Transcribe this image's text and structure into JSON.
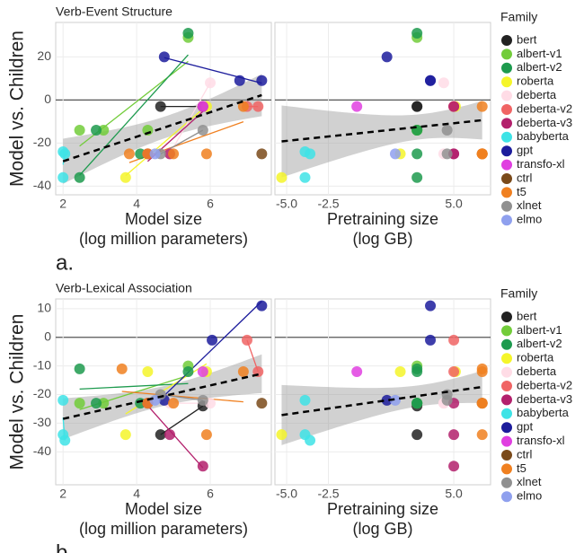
{
  "chart_data": [
    {
      "type": "scatter",
      "title": "Verb-Event Structure",
      "panel_label": "a.",
      "ylabel": "Model vs. Children",
      "legend_title": "Family",
      "ylim": [
        -44,
        36
      ],
      "yticks": [
        -40,
        -20,
        0,
        20
      ],
      "xlabel": [
        "Model size",
        "(log million parameters)"
      ],
      "xlim": [
        1.8,
        7.66
      ],
      "xticks": [
        2,
        4,
        6
      ],
      "x2label": [
        "Pretraining size",
        "(log GB)"
      ],
      "x2lim": [
        -5.7,
        7.2
      ],
      "x2ticks": [
        {
          "value": -5,
          "label": "-5.0"
        },
        {
          "value": -2.5,
          "label": "-2.5"
        },
        {
          "value": 5,
          "label": "5.0"
        }
      ],
      "series": [
        {
          "name": "bert",
          "color": "#222222",
          "x": [
            4.65,
            5.8
          ],
          "x2": [
            2.8,
            2.8
          ],
          "values": [
            -3,
            -3
          ]
        },
        {
          "name": "albert-v1",
          "color": "#72cc3a",
          "x": [
            2.45,
            3.1,
            4.3,
            5.4
          ],
          "x2": [
            2.8,
            2.8,
            2.8,
            2.8
          ],
          "values": [
            -14,
            -14,
            -14,
            29
          ]
        },
        {
          "name": "albert-v2",
          "color": "#1d9a4e",
          "x": [
            2.45,
            2.9,
            4.1,
            5.4
          ],
          "x2": [
            2.8,
            2.8,
            2.8,
            2.8
          ],
          "values": [
            -36,
            -14,
            -25,
            31
          ]
        },
        {
          "name": "roberta",
          "color": "#f5f52a",
          "x": [
            3.7,
            4.3,
            5.9
          ],
          "x2": [
            -5.3,
            1.8,
            5.1
          ],
          "values": [
            -36,
            -25,
            -3
          ]
        },
        {
          "name": "deberta",
          "color": "#ffdce6",
          "x": [
            4.9,
            6.0
          ],
          "x2": [
            4.4,
            4.4
          ],
          "values": [
            -25,
            8
          ]
        },
        {
          "name": "deberta-v2",
          "color": "#f06464",
          "x": [
            7.0,
            7.3
          ],
          "x2": [
            5.0,
            5.0
          ],
          "values": [
            -3,
            -3
          ]
        },
        {
          "name": "deberta-v3",
          "color": "#b3206c",
          "x": [
            4.3,
            4.9,
            5.8
          ],
          "x2": [
            5.0,
            5.0,
            5.0
          ],
          "values": [
            -25,
            -25,
            -3
          ]
        },
        {
          "name": "babyberta",
          "color": "#3ee3e6",
          "x": [
            2.0,
            2.0,
            2.05
          ],
          "x2": [
            -3.9,
            -3.9,
            -3.6
          ],
          "values": [
            -24,
            -36,
            -25
          ]
        },
        {
          "name": "gpt",
          "color": "#1c1c9c",
          "x": [
            4.75,
            6.8,
            7.4
          ],
          "x2": [
            1.0,
            3.6,
            3.6
          ],
          "values": [
            20,
            9,
            9
          ]
        },
        {
          "name": "transfo-xl",
          "color": "#e03fe0",
          "x": [
            5.8
          ],
          "x2": [
            -0.8
          ],
          "values": [
            -3
          ]
        },
        {
          "name": "ctrl",
          "color": "#7a4a1a",
          "x": [
            7.4
          ],
          "x2": [
            6.7
          ],
          "values": [
            -25
          ]
        },
        {
          "name": "t5",
          "color": "#f08020",
          "x": [
            3.8,
            4.3,
            5.0,
            5.9,
            6.9
          ],
          "x2": [
            6.7,
            6.7,
            6.7,
            6.7,
            6.7
          ],
          "values": [
            -25,
            -25,
            -25,
            -25,
            -3
          ]
        },
        {
          "name": "xlnet",
          "color": "#909090",
          "x": [
            4.65,
            5.8
          ],
          "x2": [
            4.6,
            4.6
          ],
          "values": [
            -25,
            -14
          ]
        },
        {
          "name": "elmo",
          "color": "#8fa0ee",
          "x": [
            4.5
          ],
          "x2": [
            1.5
          ],
          "values": [
            -25
          ]
        }
      ]
    },
    {
      "type": "scatter",
      "title": "Verb-Lexical Association",
      "panel_label": "b.",
      "ylabel": "Model vs. Children",
      "legend_title": "Family",
      "ylim": [
        -51.5,
        13.4
      ],
      "yticks": [
        -40,
        -30,
        -20,
        -10,
        0,
        10
      ],
      "xlabel": [
        "Model size",
        "(log million parameters)"
      ],
      "xlim": [
        1.8,
        7.66
      ],
      "xticks": [
        2,
        4,
        6
      ],
      "x2label": [
        "Pretraining size",
        "(log GB)"
      ],
      "x2lim": [
        -5.7,
        7.2
      ],
      "x2ticks": [
        {
          "value": -5,
          "label": "-5.0"
        },
        {
          "value": -2.5,
          "label": "-2.5"
        },
        {
          "value": 5,
          "label": "5.0"
        }
      ],
      "series": [
        {
          "name": "bert",
          "color": "#222222",
          "x": [
            4.65,
            5.8
          ],
          "x2": [
            2.8,
            2.8
          ],
          "values": [
            -34,
            -24
          ]
        },
        {
          "name": "albert-v1",
          "color": "#72cc3a",
          "x": [
            2.45,
            3.1,
            4.3,
            5.4
          ],
          "x2": [
            2.8,
            2.8,
            2.8,
            2.8
          ],
          "values": [
            -23,
            -23,
            -23,
            -10
          ]
        },
        {
          "name": "albert-v2",
          "color": "#1d9a4e",
          "x": [
            2.45,
            2.9,
            4.1,
            5.4
          ],
          "x2": [
            2.8,
            2.8,
            2.8,
            2.8
          ],
          "values": [
            -11,
            -23,
            -23,
            -12
          ]
        },
        {
          "name": "roberta",
          "color": "#f5f52a",
          "x": [
            3.7,
            4.3,
            5.9
          ],
          "x2": [
            -5.3,
            1.8,
            5.1
          ],
          "values": [
            -34,
            -12,
            -12
          ]
        },
        {
          "name": "deberta",
          "color": "#ffdce6",
          "x": [
            4.9,
            6.0
          ],
          "x2": [
            4.4,
            4.4
          ],
          "values": [
            -23,
            -23
          ]
        },
        {
          "name": "deberta-v2",
          "color": "#f06464",
          "x": [
            7.0,
            7.3
          ],
          "x2": [
            5.0,
            5.0
          ],
          "values": [
            -1,
            -12
          ]
        },
        {
          "name": "deberta-v3",
          "color": "#b3206c",
          "x": [
            4.3,
            4.9,
            5.8
          ],
          "x2": [
            5.0,
            5.0,
            5.0
          ],
          "values": [
            -23,
            -34,
            -45
          ]
        },
        {
          "name": "babyberta",
          "color": "#3ee3e6",
          "x": [
            2.0,
            2.0,
            2.05
          ],
          "x2": [
            -3.9,
            -3.9,
            -3.6
          ],
          "values": [
            -22,
            -34,
            -36
          ]
        },
        {
          "name": "gpt",
          "color": "#1c1c9c",
          "x": [
            4.75,
            6.05,
            7.4
          ],
          "x2": [
            1.0,
            3.6,
            3.6
          ],
          "values": [
            -22,
            -1,
            11
          ]
        },
        {
          "name": "transfo-xl",
          "color": "#e03fe0",
          "x": [
            5.8
          ],
          "x2": [
            -0.8
          ],
          "values": [
            -12
          ]
        },
        {
          "name": "ctrl",
          "color": "#7a4a1a",
          "x": [
            7.4
          ],
          "x2": [
            6.7
          ],
          "values": [
            -23
          ]
        },
        {
          "name": "t5",
          "color": "#f08020",
          "x": [
            3.6,
            4.3,
            5.0,
            5.9,
            6.9
          ],
          "x2": [
            6.7,
            6.7,
            6.7,
            6.7,
            6.7
          ],
          "values": [
            -11,
            -23,
            -23,
            -34,
            -12
          ]
        },
        {
          "name": "xlnet",
          "color": "#909090",
          "x": [
            4.65,
            5.8
          ],
          "x2": [
            4.6,
            4.6
          ],
          "values": [
            -20,
            -22
          ]
        },
        {
          "name": "elmo",
          "color": "#8fa0ee",
          "x": [
            4.5
          ],
          "x2": [
            1.5
          ],
          "values": [
            -22
          ]
        }
      ]
    }
  ]
}
